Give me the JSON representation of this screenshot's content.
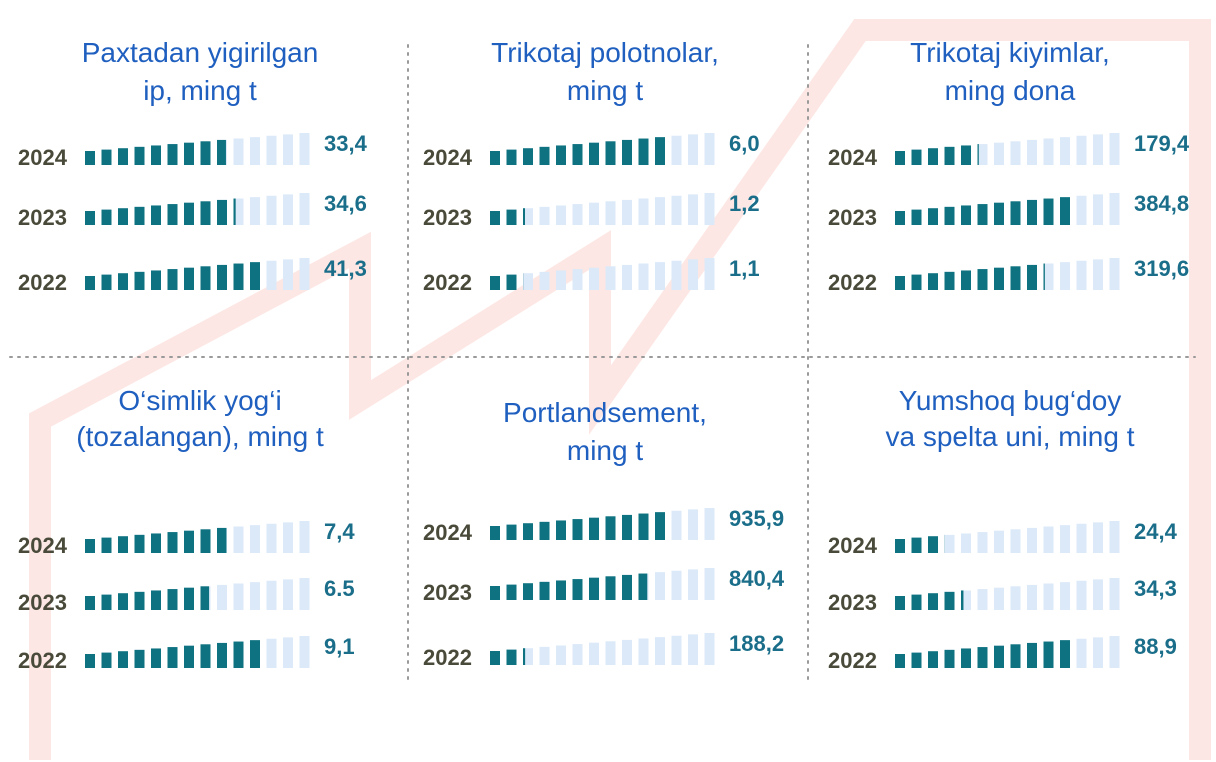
{
  "chart_data": [
    {
      "type": "pictogram",
      "title": [
        "Paxtadan yigirilgan",
        "ip, ming t"
      ],
      "categories": [
        "2024",
        "2023",
        "2022"
      ],
      "values": [
        33.4,
        34.6,
        41.3
      ],
      "value_labels": [
        "33,4",
        "34,6",
        "41,3"
      ],
      "color": "#0e7280"
    },
    {
      "type": "pictogram",
      "title": [
        "Trikotaj polotnolar,",
        "ming t"
      ],
      "categories": [
        "2024",
        "2023",
        "2022"
      ],
      "values": [
        6.0,
        1.2,
        1.1
      ],
      "value_labels": [
        "6,0",
        "1,2",
        "1,1"
      ],
      "color": "#0e7280"
    },
    {
      "type": "pictogram",
      "title": [
        "Trikotaj kiyimlar,",
        "ming dona"
      ],
      "categories": [
        "2024",
        "2023",
        "2022"
      ],
      "values": [
        179.4,
        384.8,
        319.6
      ],
      "value_labels": [
        "179,4",
        "384,8",
        "319,6"
      ],
      "color": "#0e7280"
    },
    {
      "type": "pictogram",
      "title": [
        "O‘simlik yog‘i",
        "(tozalangan), ming t"
      ],
      "categories": [
        "2024",
        "2023",
        "2022"
      ],
      "values": [
        7.4,
        6.5,
        9.1
      ],
      "value_labels": [
        "7,4",
        "6.5",
        "9,1"
      ],
      "color": "#0e7280"
    },
    {
      "type": "pictogram",
      "title": [
        "Portlandsement,",
        "ming t"
      ],
      "categories": [
        "2024",
        "2023",
        "2022"
      ],
      "values": [
        935.9,
        840.4,
        188.2
      ],
      "value_labels": [
        "935,9",
        "840,4",
        "188,2"
      ],
      "color": "#0e7280"
    },
    {
      "type": "pictogram",
      "title": [
        "Yumshoq bug‘doy",
        "va spelta uni, ming t"
      ],
      "categories": [
        "2024",
        "2023",
        "2022"
      ],
      "values": [
        24.4,
        34.3,
        88.9
      ],
      "value_labels": [
        "24,4",
        "34,3",
        "88,9"
      ],
      "color": "#0e7280"
    }
  ]
}
